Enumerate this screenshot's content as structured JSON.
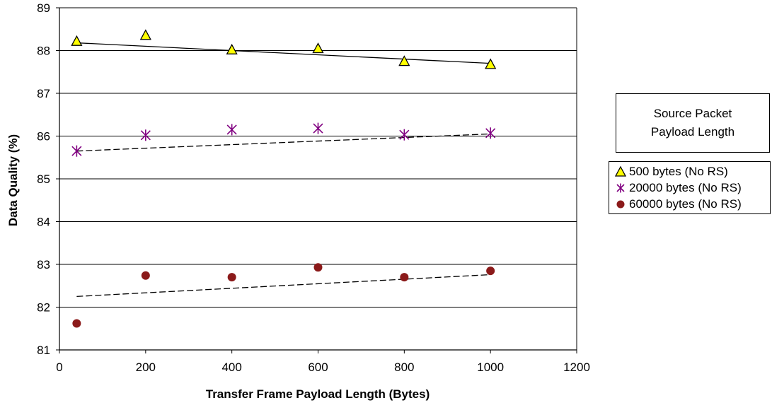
{
  "chart_data": {
    "type": "scatter",
    "title": "",
    "xlabel": "Transfer Frame Payload Length (Bytes)",
    "ylabel": "Data Quality (%)",
    "xlim": [
      0,
      1200
    ],
    "ylim": [
      81,
      89
    ],
    "xticks": [
      0,
      200,
      400,
      600,
      800,
      1000,
      1200
    ],
    "yticks": [
      81,
      82,
      83,
      84,
      85,
      86,
      87,
      88,
      89
    ],
    "grid": "horizontal",
    "legend_title": [
      "Source Packet",
      "Payload Length"
    ],
    "legend_position": "right",
    "series": [
      {
        "name": "500 bytes (No RS)",
        "marker": "triangle",
        "color": "#ffff00",
        "x": [
          40,
          200,
          400,
          600,
          800,
          1000
        ],
        "y": [
          88.22,
          88.36,
          88.02,
          88.05,
          87.75,
          87.68
        ],
        "trendline": {
          "style": "solid",
          "x": [
            40,
            1000
          ],
          "y": [
            88.18,
            87.7
          ]
        }
      },
      {
        "name": "20000 bytes (No RS)",
        "marker": "asterisk",
        "color": "#800080",
        "x": [
          40,
          200,
          400,
          600,
          800,
          1000
        ],
        "y": [
          85.65,
          86.02,
          86.15,
          86.18,
          86.03,
          86.07
        ],
        "trendline": {
          "style": "dashed",
          "x": [
            40,
            1000
          ],
          "y": [
            85.65,
            86.05
          ]
        }
      },
      {
        "name": "60000 bytes (No RS)",
        "marker": "circle",
        "color": "#8b1a1a",
        "x": [
          40,
          200,
          400,
          600,
          800,
          1000
        ],
        "y": [
          81.62,
          82.74,
          82.7,
          82.93,
          82.7,
          82.85
        ],
        "trendline": {
          "style": "dashed",
          "x": [
            40,
            1000
          ],
          "y": [
            82.25,
            82.76
          ]
        }
      }
    ]
  }
}
